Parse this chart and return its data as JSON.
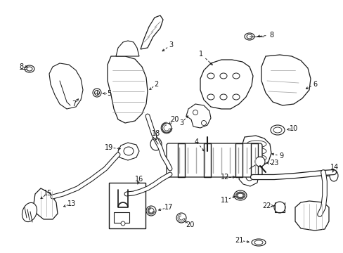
{
  "background_color": "#ffffff",
  "fig_width": 4.89,
  "fig_height": 3.6,
  "dpi": 100,
  "line_color": "#1a1a1a",
  "text_color": "#111111",
  "font_size": 7.0
}
